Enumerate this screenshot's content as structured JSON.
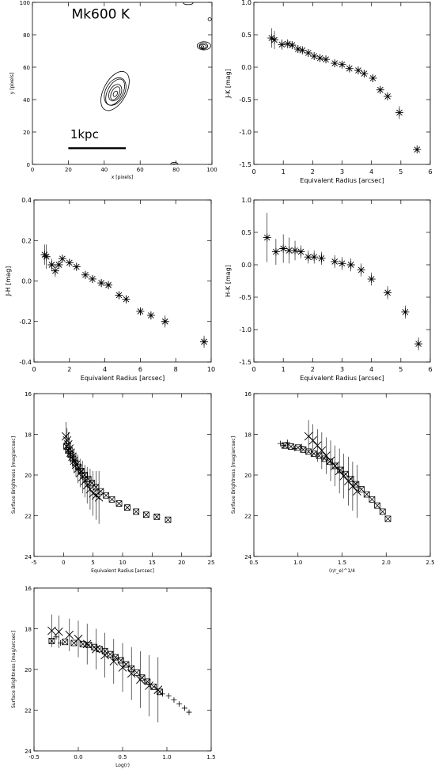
{
  "chart_data": [
    {
      "id": "contour",
      "type": "contour",
      "title": "Mk600 K",
      "xlabel": "x [pixels]",
      "ylabel": "y [pixels]",
      "xlim": [
        0,
        100
      ],
      "ylim": [
        0,
        100
      ],
      "xticks": [
        0,
        20,
        40,
        60,
        80,
        100
      ],
      "yticks": [
        0,
        20,
        40,
        60,
        80,
        100
      ],
      "scalebar": {
        "label": "1kpc",
        "x": [
          20,
          52
        ],
        "y": 10
      },
      "sources": [
        {
          "cx": 46,
          "cy": 44,
          "rx": 11,
          "ry": 7,
          "angle": -62,
          "rings": 6
        },
        {
          "cx": 95,
          "cy": 73,
          "rx": 3.5,
          "ry": 2.5,
          "angle": 0,
          "rings": 4
        },
        {
          "cx": 79,
          "cy": 0,
          "rx": 2,
          "ry": 1.5,
          "angle": 0,
          "rings": 2
        },
        {
          "cx": 99,
          "cy": 90,
          "rx": 1,
          "ry": 1,
          "angle": 0,
          "rings": 1
        },
        {
          "cx": 87,
          "cy": 100,
          "rx": 3,
          "ry": 1,
          "angle": 0,
          "rings": 1
        }
      ]
    },
    {
      "id": "jk",
      "type": "scatter",
      "xlabel": "Equivalent Radius [arcsec]",
      "ylabel": "J-K [mag]",
      "xlim": [
        0,
        6
      ],
      "ylim": [
        -1.5,
        1.0
      ],
      "xticks": [
        0,
        1,
        2,
        3,
        4,
        5,
        6
      ],
      "yticks": [
        "-1.5",
        "-1.0",
        "-0.5",
        "0.0",
        "0.5",
        "1.0"
      ],
      "x": [
        0.6,
        0.7,
        0.95,
        1.15,
        1.3,
        1.5,
        1.65,
        1.85,
        2.05,
        2.25,
        2.45,
        2.75,
        3.0,
        3.25,
        3.55,
        3.75,
        4.05,
        4.3,
        4.55,
        4.95,
        5.55
      ],
      "y": [
        0.45,
        0.42,
        0.35,
        0.36,
        0.34,
        0.28,
        0.26,
        0.22,
        0.17,
        0.14,
        0.12,
        0.06,
        0.04,
        -0.02,
        -0.05,
        -0.1,
        -0.17,
        -0.35,
        -0.45,
        -0.7,
        -1.27
      ],
      "err": [
        0.15,
        0.14,
        0.08,
        0.07,
        0.06,
        0.05,
        0.05,
        0.04,
        0.04,
        0.04,
        0.04,
        0.04,
        0.04,
        0.04,
        0.04,
        0.05,
        0.05,
        0.05,
        0.06,
        0.1,
        0.06
      ]
    },
    {
      "id": "jh",
      "type": "scatter",
      "xlabel": "Equivalent Radius [arcsec]",
      "ylabel": "J-H [mag]",
      "xlim": [
        0,
        10
      ],
      "ylim": [
        -0.4,
        0.4
      ],
      "xticks": [
        0,
        2,
        4,
        6,
        8,
        10
      ],
      "yticks": [
        "-0.4",
        "-0.2",
        "0.0",
        "0.2",
        "0.4"
      ],
      "x": [
        0.6,
        0.7,
        1.0,
        1.2,
        1.4,
        1.6,
        2.0,
        2.4,
        2.9,
        3.3,
        3.8,
        4.2,
        4.8,
        5.2,
        6.0,
        6.6,
        7.4,
        9.6
      ],
      "y": [
        0.13,
        0.12,
        0.08,
        0.05,
        0.08,
        0.11,
        0.09,
        0.07,
        0.03,
        0.01,
        -0.01,
        -0.02,
        -0.07,
        -0.09,
        -0.15,
        -0.17,
        -0.2,
        -0.3
      ],
      "err": [
        0.05,
        0.06,
        0.03,
        0.03,
        0.02,
        0.02,
        0.02,
        0.02,
        0.02,
        0.02,
        0.02,
        0.02,
        0.02,
        0.02,
        0.02,
        0.02,
        0.03,
        0.03
      ]
    },
    {
      "id": "hk",
      "type": "scatter",
      "xlabel": "Equivalent Radius [arcsec]",
      "ylabel": "H-K [mag]",
      "xlim": [
        0,
        6
      ],
      "ylim": [
        -1.5,
        1.0
      ],
      "xticks": [
        0,
        1,
        2,
        3,
        4,
        5,
        6
      ],
      "yticks": [
        "-1.5",
        "-1.0",
        "-0.5",
        "0.0",
        "0.5",
        "1.0"
      ],
      "x": [
        0.45,
        0.75,
        1.0,
        1.2,
        1.4,
        1.6,
        1.85,
        2.05,
        2.3,
        2.75,
        3.0,
        3.3,
        3.65,
        4.0,
        4.55,
        5.15,
        5.6
      ],
      "y": [
        0.42,
        0.2,
        0.25,
        0.22,
        0.22,
        0.2,
        0.12,
        0.12,
        0.1,
        0.05,
        0.02,
        0.0,
        -0.08,
        -0.22,
        -0.43,
        -0.73,
        -1.22
      ],
      "err": [
        0.38,
        0.2,
        0.22,
        0.2,
        0.15,
        0.1,
        0.1,
        0.1,
        0.1,
        0.1,
        0.1,
        0.1,
        0.1,
        0.1,
        0.1,
        0.1,
        0.1
      ]
    },
    {
      "id": "sb_r",
      "type": "scatter",
      "xlabel": "Equivalent Radius [arcsec]",
      "ylabel": "Surface Brightness [mag/arcsec]",
      "xlim": [
        -5,
        25
      ],
      "ylim": [
        24,
        16
      ],
      "xticks": [
        -5,
        0,
        5,
        10,
        15,
        20,
        25
      ],
      "yticks": [
        16,
        18,
        20,
        22,
        24
      ],
      "stars": {
        "x": [
          0.4,
          0.6,
          0.8,
          1.0,
          1.2,
          1.5,
          1.8,
          2.1,
          2.4,
          2.8,
          3.2,
          3.6,
          4.0,
          4.5,
          5.0,
          5.5,
          6.0
        ],
        "y": [
          18.1,
          18.3,
          18.5,
          18.7,
          18.9,
          19.1,
          19.3,
          19.5,
          19.7,
          19.9,
          20.1,
          20.3,
          20.5,
          20.7,
          20.9,
          21.0,
          21.1
        ],
        "err": [
          0.7,
          0.6,
          0.6,
          0.5,
          0.5,
          0.5,
          0.6,
          0.6,
          0.7,
          0.7,
          0.8,
          0.8,
          0.9,
          1.0,
          1.1,
          1.2,
          1.3
        ]
      },
      "boxes": {
        "x": [
          0.5,
          0.8,
          1.2,
          1.6,
          2.0,
          2.5,
          3.0,
          3.6,
          4.2,
          4.8,
          5.5,
          6.3,
          7.2,
          8.2,
          9.4,
          10.8,
          12.3,
          14.0,
          15.8,
          17.7
        ],
        "y": [
          18.6,
          18.8,
          19.0,
          19.2,
          19.4,
          19.6,
          19.8,
          20.0,
          20.2,
          20.4,
          20.6,
          20.8,
          21.0,
          21.2,
          21.4,
          21.6,
          21.8,
          21.95,
          22.05,
          22.2
        ]
      }
    },
    {
      "id": "sb_r14",
      "type": "scatter",
      "xlabel": "(r/r_e)^1/4",
      "ylabel": "Surface Brightness [mag/arcsec]",
      "xlim": [
        0.5,
        2.5
      ],
      "ylim": [
        24,
        16
      ],
      "xticks": [
        "0.5",
        "1.0",
        "1.5",
        "2.0",
        "2.5"
      ],
      "yticks": [
        16,
        18,
        20,
        22,
        24
      ],
      "stars": {
        "x": [
          1.12,
          1.17,
          1.22,
          1.27,
          1.32,
          1.37,
          1.42,
          1.47,
          1.52,
          1.57,
          1.62,
          1.67
        ],
        "y": [
          18.1,
          18.3,
          18.55,
          18.8,
          19.05,
          19.3,
          19.55,
          19.8,
          20.05,
          20.3,
          20.55,
          20.8
        ],
        "err": [
          0.8,
          0.8,
          0.8,
          0.9,
          0.9,
          1.0,
          1.0,
          1.1,
          1.1,
          1.2,
          1.2,
          1.3
        ]
      },
      "boxes": {
        "x": [
          0.85,
          0.92,
          1.0,
          1.06,
          1.12,
          1.18,
          1.24,
          1.3,
          1.36,
          1.42,
          1.48,
          1.54,
          1.6,
          1.66,
          1.72,
          1.78,
          1.84,
          1.9,
          1.96,
          2.02
        ],
        "y": [
          18.55,
          18.6,
          18.65,
          18.75,
          18.85,
          18.95,
          19.05,
          19.2,
          19.35,
          19.55,
          19.75,
          19.95,
          20.2,
          20.45,
          20.7,
          20.95,
          21.2,
          21.5,
          21.8,
          22.15
        ]
      },
      "crosses": {
        "x": [
          0.8,
          0.84,
          0.88,
          0.96,
          1.04
        ],
        "y": [
          18.45,
          18.55,
          18.4,
          18.7,
          18.6
        ]
      }
    },
    {
      "id": "sb_log",
      "type": "scatter",
      "xlabel": "Log(r)",
      "ylabel": "Surface Brightness [mag/arcsec]",
      "xlim": [
        -0.5,
        1.5
      ],
      "ylim": [
        24,
        16
      ],
      "xticks": [
        "-0.5",
        "0.0",
        "0.5",
        "1.0",
        "1.5"
      ],
      "yticks": [
        16,
        18,
        20,
        22,
        24
      ],
      "stars": {
        "x": [
          -0.3,
          -0.22,
          -0.1,
          0.0,
          0.1,
          0.2,
          0.3,
          0.4,
          0.5,
          0.6,
          0.7,
          0.8,
          0.9
        ],
        "y": [
          18.1,
          18.15,
          18.3,
          18.5,
          18.75,
          19.0,
          19.3,
          19.6,
          19.9,
          20.2,
          20.5,
          20.8,
          21.0
        ],
        "err": [
          0.8,
          0.8,
          0.8,
          0.9,
          1.0,
          1.0,
          1.1,
          1.1,
          1.2,
          1.3,
          1.4,
          1.5,
          1.6
        ]
      },
      "boxes": {
        "x": [
          -0.3,
          -0.15,
          -0.05,
          0.05,
          0.12,
          0.18,
          0.24,
          0.3,
          0.36,
          0.42,
          0.48,
          0.54,
          0.6,
          0.66,
          0.72,
          0.78,
          0.85,
          0.92
        ],
        "y": [
          18.6,
          18.65,
          18.7,
          18.75,
          18.8,
          18.9,
          19.0,
          19.1,
          19.25,
          19.4,
          19.55,
          19.75,
          19.95,
          20.15,
          20.4,
          20.6,
          20.85,
          21.1
        ]
      },
      "crosses": {
        "x": [
          -0.25,
          -0.2,
          0.95,
          1.02,
          1.08,
          1.14,
          1.2,
          1.25
        ],
        "y": [
          18.4,
          18.7,
          21.2,
          21.3,
          21.5,
          21.7,
          21.9,
          22.1
        ]
      }
    }
  ]
}
